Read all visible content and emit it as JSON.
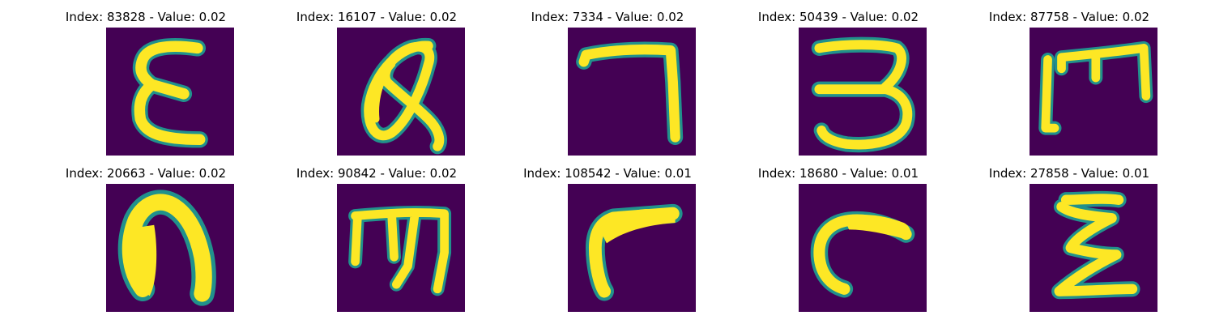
{
  "colors": {
    "background": "#440154",
    "stroke": "#fde725",
    "edge": "#21918c",
    "title": "#000000"
  },
  "panels": [
    {
      "title": "Index: 83828 - Value: 0.02",
      "glyph": "epsilon-glyph"
    },
    {
      "title": "Index: 16107 - Value: 0.02",
      "glyph": "looped-a-glyph"
    },
    {
      "title": "Index: 7334 - Value: 0.02",
      "glyph": "seven-glyph"
    },
    {
      "title": "Index: 50439 - Value: 0.02",
      "glyph": "three-glyph"
    },
    {
      "title": "Index: 87758 - Value: 0.02",
      "glyph": "m-hook-glyph"
    },
    {
      "title": "Index: 20663 - Value: 0.02",
      "glyph": "bold-n-glyph"
    },
    {
      "title": "Index: 90842 - Value: 0.02",
      "glyph": "m-trident-glyph"
    },
    {
      "title": "Index: 108542 - Value: 0.01",
      "glyph": "r-bold-glyph"
    },
    {
      "title": "Index: 18680 - Value: 0.01",
      "glyph": "c-hook-glyph"
    },
    {
      "title": "Index: 27858 - Value: 0.01",
      "glyph": "sigma-glyph"
    }
  ]
}
